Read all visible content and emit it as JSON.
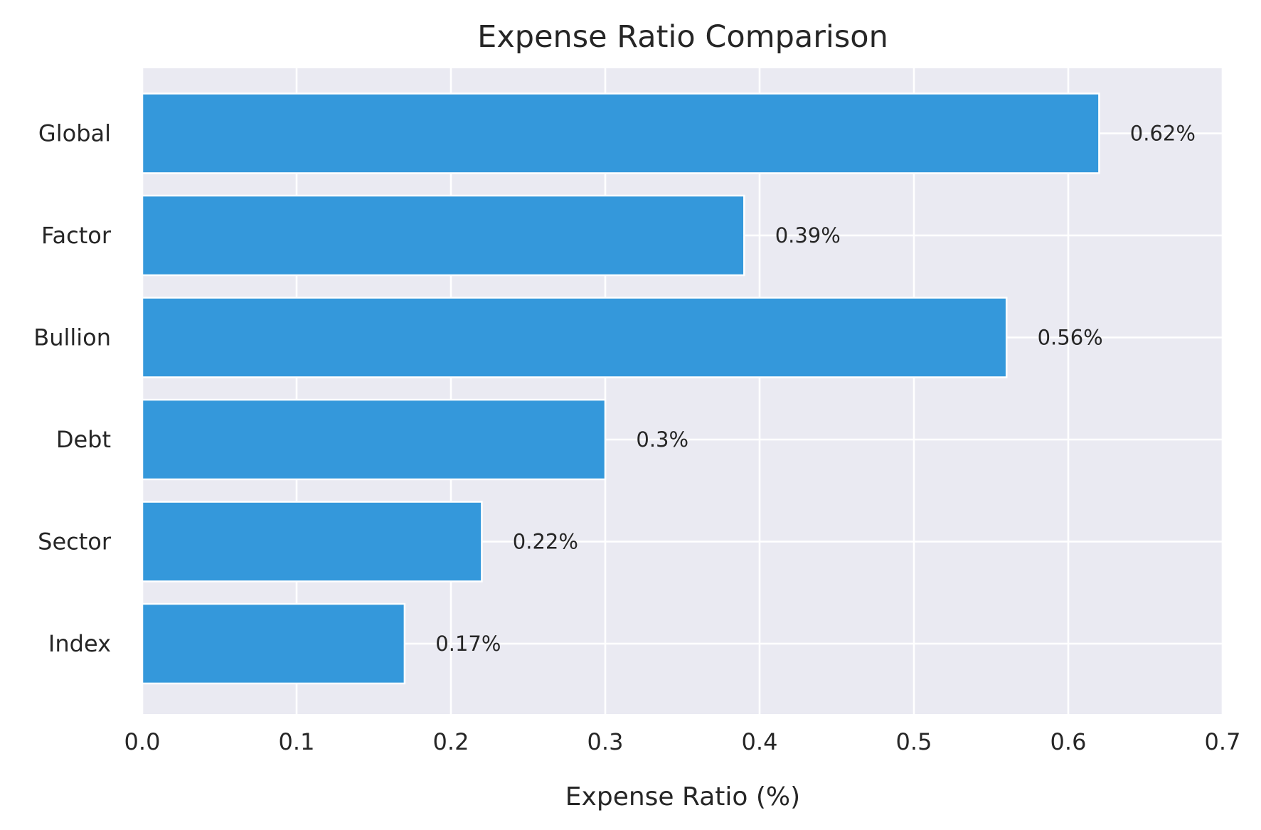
{
  "chart_data": {
    "type": "bar",
    "orientation": "horizontal",
    "title": "Expense Ratio Comparison",
    "xlabel": "Expense Ratio (%)",
    "ylabel": "",
    "categories": [
      "Index",
      "Sector",
      "Debt",
      "Bullion",
      "Factor",
      "Global"
    ],
    "values": [
      0.17,
      0.22,
      0.3,
      0.56,
      0.39,
      0.62
    ],
    "value_labels": [
      "0.17%",
      "0.22%",
      "0.3%",
      "0.56%",
      "0.39%",
      "0.62%"
    ],
    "xlim": [
      0,
      0.7
    ],
    "xticks": [
      0,
      0.1,
      0.2,
      0.3,
      0.4,
      0.5,
      0.6,
      0.7
    ],
    "xtick_labels": [
      "0.0",
      "0.1",
      "0.2",
      "0.3",
      "0.4",
      "0.5",
      "0.6",
      "0.7"
    ],
    "grid": true,
    "bar_color": "#3498db",
    "background_color": "#eaeaf2",
    "grid_color": "#ffffff"
  }
}
